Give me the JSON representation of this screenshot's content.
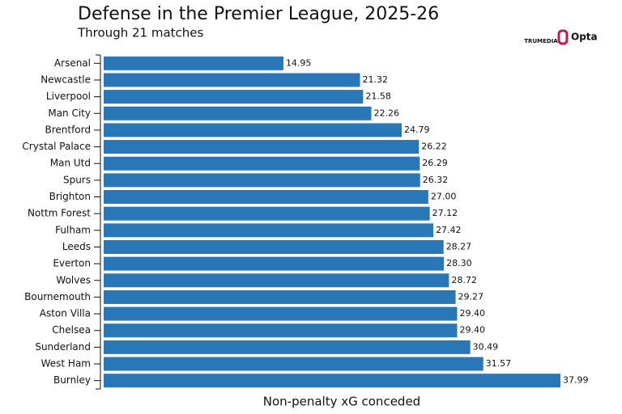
{
  "chart_data": {
    "type": "barh",
    "title": "Defense in the Premier League, 2025-26",
    "subtitle": "Through 21 matches",
    "x_label": "Non-penalty xG conceded",
    "logos": [
      "TRUMEDIA",
      "Opta"
    ],
    "color": "#2a77b8",
    "categories": [
      "Arsenal",
      "Newcastle",
      "Liverpool",
      "Man City",
      "Brentford",
      "Crystal Palace",
      "Man Utd",
      "Spurs",
      "Brighton",
      "Nottm Forest",
      "Fulham",
      "Leeds",
      "Everton",
      "Wolves",
      "Bournemouth",
      "Aston Villa",
      "Chelsea",
      "Sunderland",
      "West Ham",
      "Burnley"
    ],
    "values": [
      14.95,
      21.32,
      21.58,
      22.26,
      24.79,
      26.22,
      26.29,
      26.32,
      27.0,
      27.12,
      27.42,
      28.27,
      28.3,
      28.72,
      29.27,
      29.4,
      29.4,
      30.49,
      31.57,
      37.99
    ],
    "value_labels": [
      "14.95",
      "21.32",
      "21.58",
      "22.26",
      "24.79",
      "26.22",
      "26.29",
      "26.32",
      "27.00",
      "27.12",
      "27.42",
      "28.27",
      "28.30",
      "28.72",
      "29.27",
      "29.40",
      "29.40",
      "30.49",
      "31.57",
      "37.99"
    ]
  }
}
